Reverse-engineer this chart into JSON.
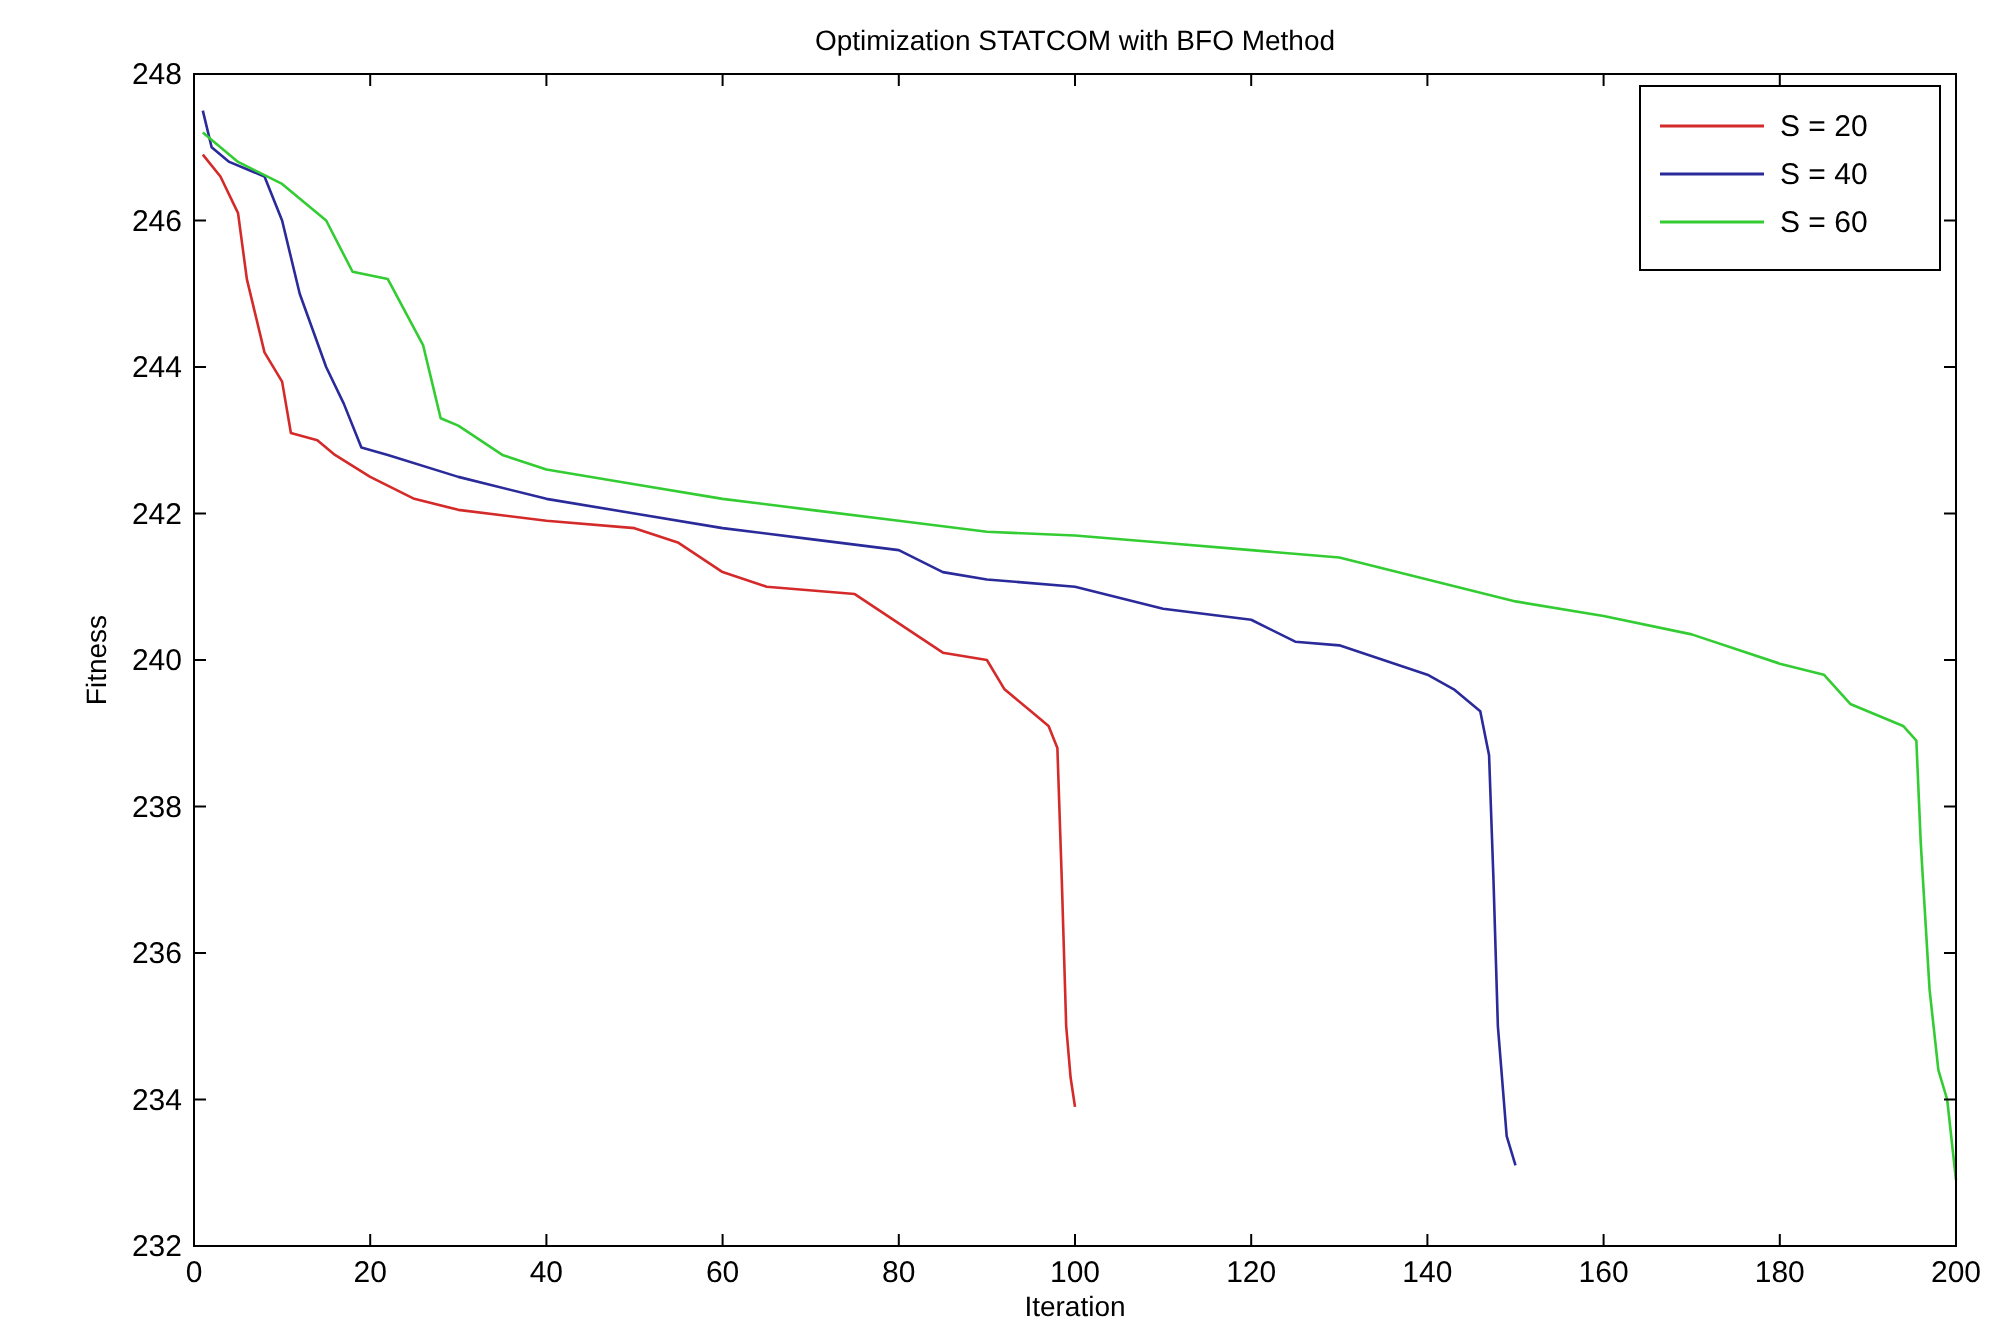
{
  "chart_data": {
    "type": "line",
    "title": "Optimization STATCOM with BFO Method",
    "xlabel": "Iteration",
    "ylabel": "Fitness",
    "xlim": [
      0,
      200
    ],
    "xticks": [
      0,
      20,
      40,
      60,
      80,
      100,
      120,
      140,
      160,
      180,
      200
    ],
    "ylim": [
      232,
      248
    ],
    "yticks": [
      232,
      234,
      236,
      238,
      240,
      242,
      244,
      246,
      248
    ],
    "legend": "top right",
    "grid": false,
    "series": [
      {
        "name": "S = 20",
        "color": "#d42a2a",
        "x": [
          1,
          3,
          5,
          6,
          8,
          10,
          11,
          14,
          16,
          20,
          25,
          30,
          40,
          50,
          55,
          60,
          65,
          75,
          80,
          85,
          90,
          92,
          95,
          97,
          98,
          98.5,
          99,
          99.5,
          100
        ],
        "values": [
          246.9,
          246.6,
          246.1,
          245.2,
          244.2,
          243.8,
          243.1,
          243.0,
          242.8,
          242.5,
          242.2,
          242.05,
          241.9,
          241.8,
          241.6,
          241.2,
          241.0,
          240.9,
          240.5,
          240.1,
          240.0,
          239.6,
          239.3,
          239.1,
          238.8,
          237.0,
          235.0,
          234.3,
          233.9
        ]
      },
      {
        "name": "S = 40",
        "color": "#2a2a9a",
        "x": [
          1,
          2,
          4,
          8,
          10,
          12,
          15,
          17,
          19,
          22,
          30,
          40,
          50,
          60,
          70,
          80,
          85,
          90,
          100,
          110,
          120,
          125,
          130,
          135,
          140,
          143,
          146,
          147,
          147.5,
          148,
          149,
          150
        ],
        "values": [
          247.5,
          247.0,
          246.8,
          246.6,
          246.0,
          245.0,
          244.0,
          243.5,
          242.9,
          242.8,
          242.5,
          242.2,
          242.0,
          241.8,
          241.65,
          241.5,
          241.2,
          241.1,
          241.0,
          240.7,
          240.55,
          240.25,
          240.2,
          240.0,
          239.8,
          239.6,
          239.3,
          238.7,
          237.0,
          235.0,
          233.5,
          233.1
        ]
      },
      {
        "name": "S = 60",
        "color": "#33cc33",
        "x": [
          1,
          5,
          10,
          15,
          18,
          22,
          26,
          27,
          28,
          30,
          35,
          40,
          50,
          60,
          70,
          80,
          90,
          100,
          110,
          120,
          130,
          140,
          150,
          160,
          170,
          180,
          185,
          188,
          194,
          195.5,
          196,
          197,
          198,
          199,
          200
        ],
        "values": [
          247.2,
          246.8,
          246.5,
          246.0,
          245.3,
          245.2,
          244.3,
          243.8,
          243.3,
          243.2,
          242.8,
          242.6,
          242.4,
          242.2,
          242.05,
          241.9,
          241.75,
          241.7,
          241.6,
          241.5,
          241.4,
          241.1,
          240.8,
          240.6,
          240.35,
          239.95,
          239.8,
          239.4,
          239.1,
          238.9,
          237.5,
          235.5,
          234.4,
          234.0,
          232.9
        ]
      }
    ]
  }
}
